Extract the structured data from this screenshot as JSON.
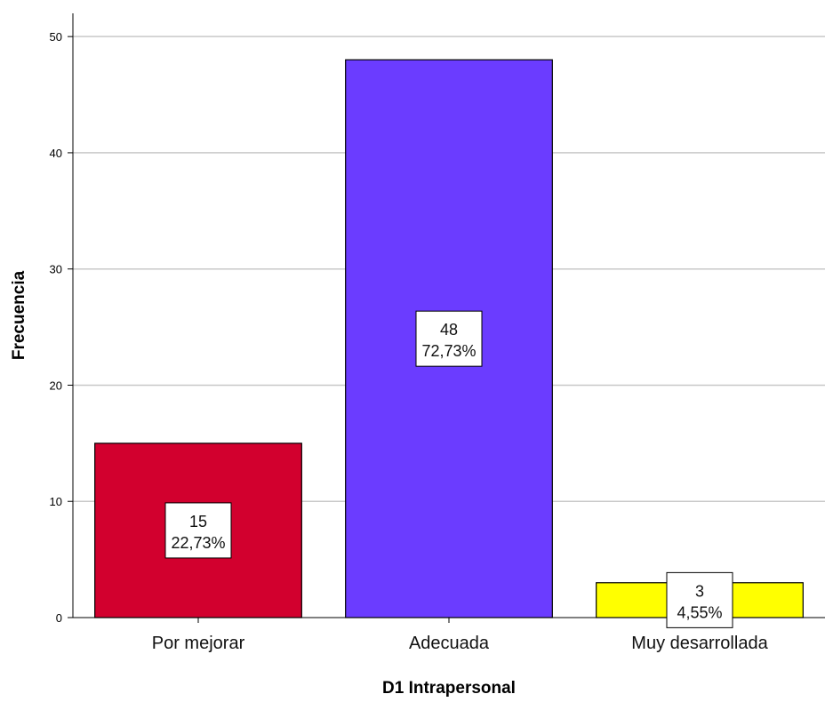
{
  "chart_data": {
    "type": "bar",
    "title": "",
    "xlabel": "D1 Intrapersonal",
    "ylabel": "Frecuencia",
    "categories": [
      "Por mejorar",
      "Adecuada",
      "Muy desarrollada"
    ],
    "values": [
      15,
      48,
      3
    ],
    "data_labels": [
      {
        "count": "15",
        "percent": "22,73%"
      },
      {
        "count": "48",
        "percent": "72,73%"
      },
      {
        "count": "3",
        "percent": "4,55%"
      }
    ],
    "colors": [
      "#d2002e",
      "#6b3cff",
      "#ffff00"
    ],
    "ylim": [
      0,
      52
    ],
    "yticks": [
      0,
      10,
      20,
      30,
      40,
      50
    ],
    "grid": true,
    "legend": "none"
  }
}
